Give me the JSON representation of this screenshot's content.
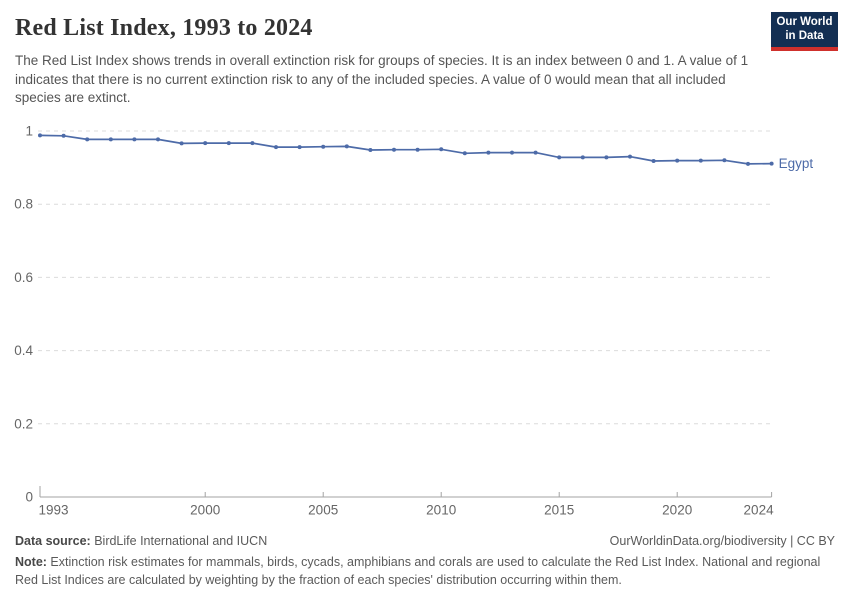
{
  "header": {
    "title": "Red List Index, 1993 to 2024",
    "subtitle": "The Red List Index shows trends in overall extinction risk for groups of species. It is an index between 0 and 1. A value of 1 indicates that there is no current extinction risk to any of the included species. A value of 0 would mean that all included species are extinct.",
    "logo": {
      "line1": "Our World",
      "line2": "in Data",
      "bg_color": "#132f53",
      "stripe_color": "#cf302c"
    }
  },
  "chart_data": {
    "type": "line",
    "title": "Red List Index, 1993 to 2024",
    "xlabel": "",
    "ylabel": "",
    "xlim": [
      1993,
      2024
    ],
    "ylim": [
      0,
      1
    ],
    "x_ticks": [
      1993,
      2000,
      2005,
      2010,
      2015,
      2020,
      2024
    ],
    "y_ticks": [
      0,
      0.2,
      0.4,
      0.6,
      0.8,
      1
    ],
    "grid": "horizontal-dashed",
    "legend_position": "end-of-line-label",
    "series": [
      {
        "name": "Egypt",
        "color": "#4d6ba8",
        "x": [
          1993,
          1994,
          1995,
          1996,
          1997,
          1998,
          1999,
          2000,
          2001,
          2002,
          2003,
          2004,
          2005,
          2006,
          2007,
          2008,
          2009,
          2010,
          2011,
          2012,
          2013,
          2014,
          2015,
          2016,
          2017,
          2018,
          2019,
          2020,
          2021,
          2022,
          2023,
          2024
        ],
        "values": [
          0.988,
          0.987,
          0.977,
          0.977,
          0.977,
          0.977,
          0.966,
          0.967,
          0.967,
          0.967,
          0.956,
          0.956,
          0.957,
          0.958,
          0.948,
          0.949,
          0.949,
          0.95,
          0.939,
          0.941,
          0.941,
          0.941,
          0.928,
          0.928,
          0.928,
          0.93,
          0.918,
          0.919,
          0.919,
          0.92,
          0.91,
          0.911
        ]
      }
    ]
  },
  "footer": {
    "datasource_label": "Data source:",
    "datasource_text": " BirdLife International and IUCN",
    "attribution": "OurWorldinData.org/biodiversity | CC BY",
    "note_label": "Note:",
    "note_text": " Extinction risk estimates for mammals, birds, cycads, amphibians and corals are used to calculate the Red List Index. National and regional Red List Indices are calculated by weighting by the fraction of each species' distribution occurring within them."
  }
}
